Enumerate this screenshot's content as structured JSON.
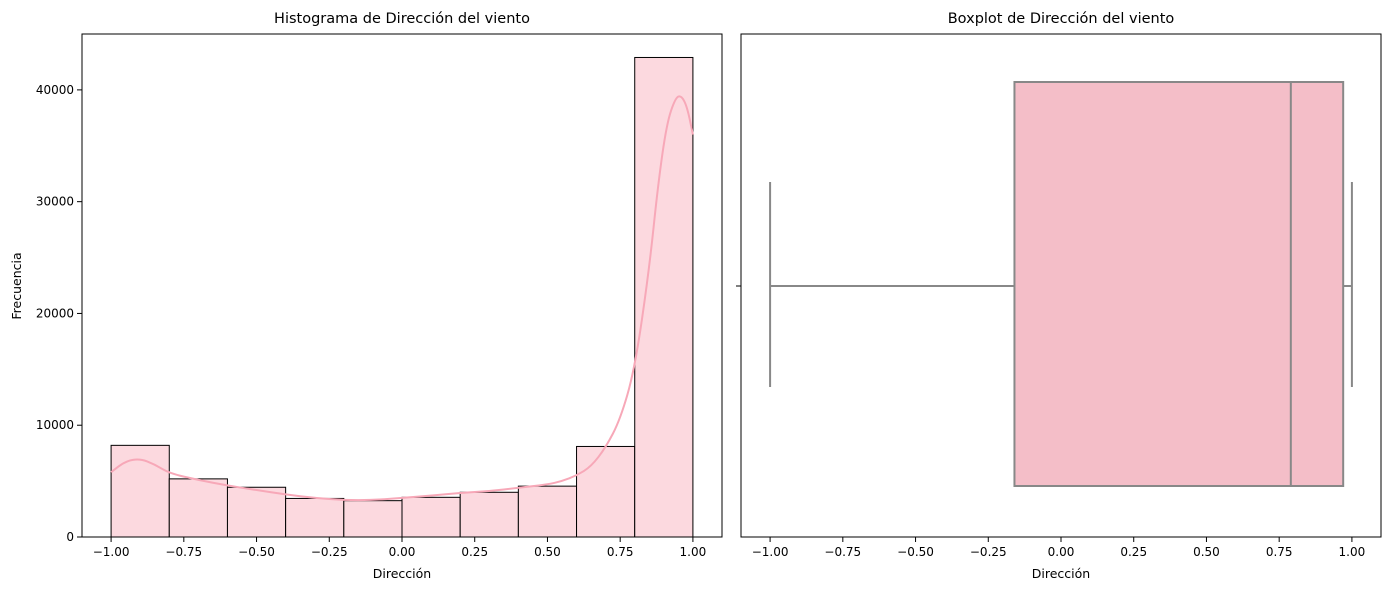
{
  "chart_data": [
    {
      "type": "histogram",
      "title": "Histograma de Dirección del viento",
      "xlabel": "Dirección",
      "ylabel": "Frecuencia",
      "xlim": [
        -1.1,
        1.1
      ],
      "ylim": [
        0,
        45000
      ],
      "xticks": [
        -1.0,
        -0.75,
        -0.5,
        -0.25,
        0.0,
        0.25,
        0.5,
        0.75,
        1.0
      ],
      "xtick_labels": [
        "−1.00",
        "−0.75",
        "−0.50",
        "−0.25",
        "0.00",
        "0.25",
        "0.50",
        "0.75",
        "1.00"
      ],
      "yticks": [
        0,
        10000,
        20000,
        30000,
        40000
      ],
      "ytick_labels": [
        "0",
        "10000",
        "20000",
        "30000",
        "40000"
      ],
      "bins": [
        {
          "x0": -1.0,
          "x1": -0.8,
          "count": 8200
        },
        {
          "x0": -0.8,
          "x1": -0.6,
          "count": 5200
        },
        {
          "x0": -0.6,
          "x1": -0.4,
          "count": 4450
        },
        {
          "x0": -0.4,
          "x1": -0.2,
          "count": 3450
        },
        {
          "x0": -0.2,
          "x1": 0.0,
          "count": 3250
        },
        {
          "x0": 0.0,
          "x1": 0.2,
          "count": 3550
        },
        {
          "x0": 0.2,
          "x1": 0.4,
          "count": 4000
        },
        {
          "x0": 0.4,
          "x1": 0.6,
          "count": 4550
        },
        {
          "x0": 0.6,
          "x1": 0.8,
          "count": 8100
        },
        {
          "x0": 0.8,
          "x1": 1.0,
          "count": 42900
        }
      ],
      "kde": {
        "x": [
          -1.0,
          -0.95,
          -0.9,
          -0.85,
          -0.8,
          -0.7,
          -0.6,
          -0.5,
          -0.4,
          -0.3,
          -0.2,
          -0.1,
          0.0,
          0.1,
          0.2,
          0.3,
          0.4,
          0.5,
          0.55,
          0.6,
          0.65,
          0.7,
          0.75,
          0.8,
          0.85,
          0.88,
          0.91,
          0.94,
          0.96,
          0.98,
          1.0
        ],
        "y": [
          5800,
          6800,
          7000,
          6500,
          5700,
          5100,
          4600,
          4200,
          3800,
          3500,
          3300,
          3300,
          3500,
          3700,
          3950,
          4100,
          4400,
          4700,
          5000,
          5500,
          6300,
          8000,
          10500,
          15000,
          24000,
          31500,
          37000,
          39300,
          39500,
          38500,
          36000
        ],
        "color": "#f7a8b8"
      },
      "bar_fill": "#fcd9df",
      "bar_edge": "#000000"
    },
    {
      "type": "boxplot",
      "title": "Boxplot de Dirección del viento",
      "xlabel": "Dirección",
      "xlim": [
        -1.1,
        1.1
      ],
      "xticks": [
        -1.0,
        -0.75,
        -0.5,
        -0.25,
        0.0,
        0.25,
        0.5,
        0.75,
        1.0
      ],
      "xtick_labels": [
        "−1.00",
        "−0.75",
        "−0.50",
        "−0.25",
        "0.00",
        "0.25",
        "0.50",
        "0.75",
        "1.00"
      ],
      "whisker_low": -1.0,
      "q1": -0.16,
      "median": 0.79,
      "q3": 0.97,
      "whisker_high": 1.0,
      "box_fill": "#f4bec8",
      "line_color": "#888888"
    }
  ]
}
